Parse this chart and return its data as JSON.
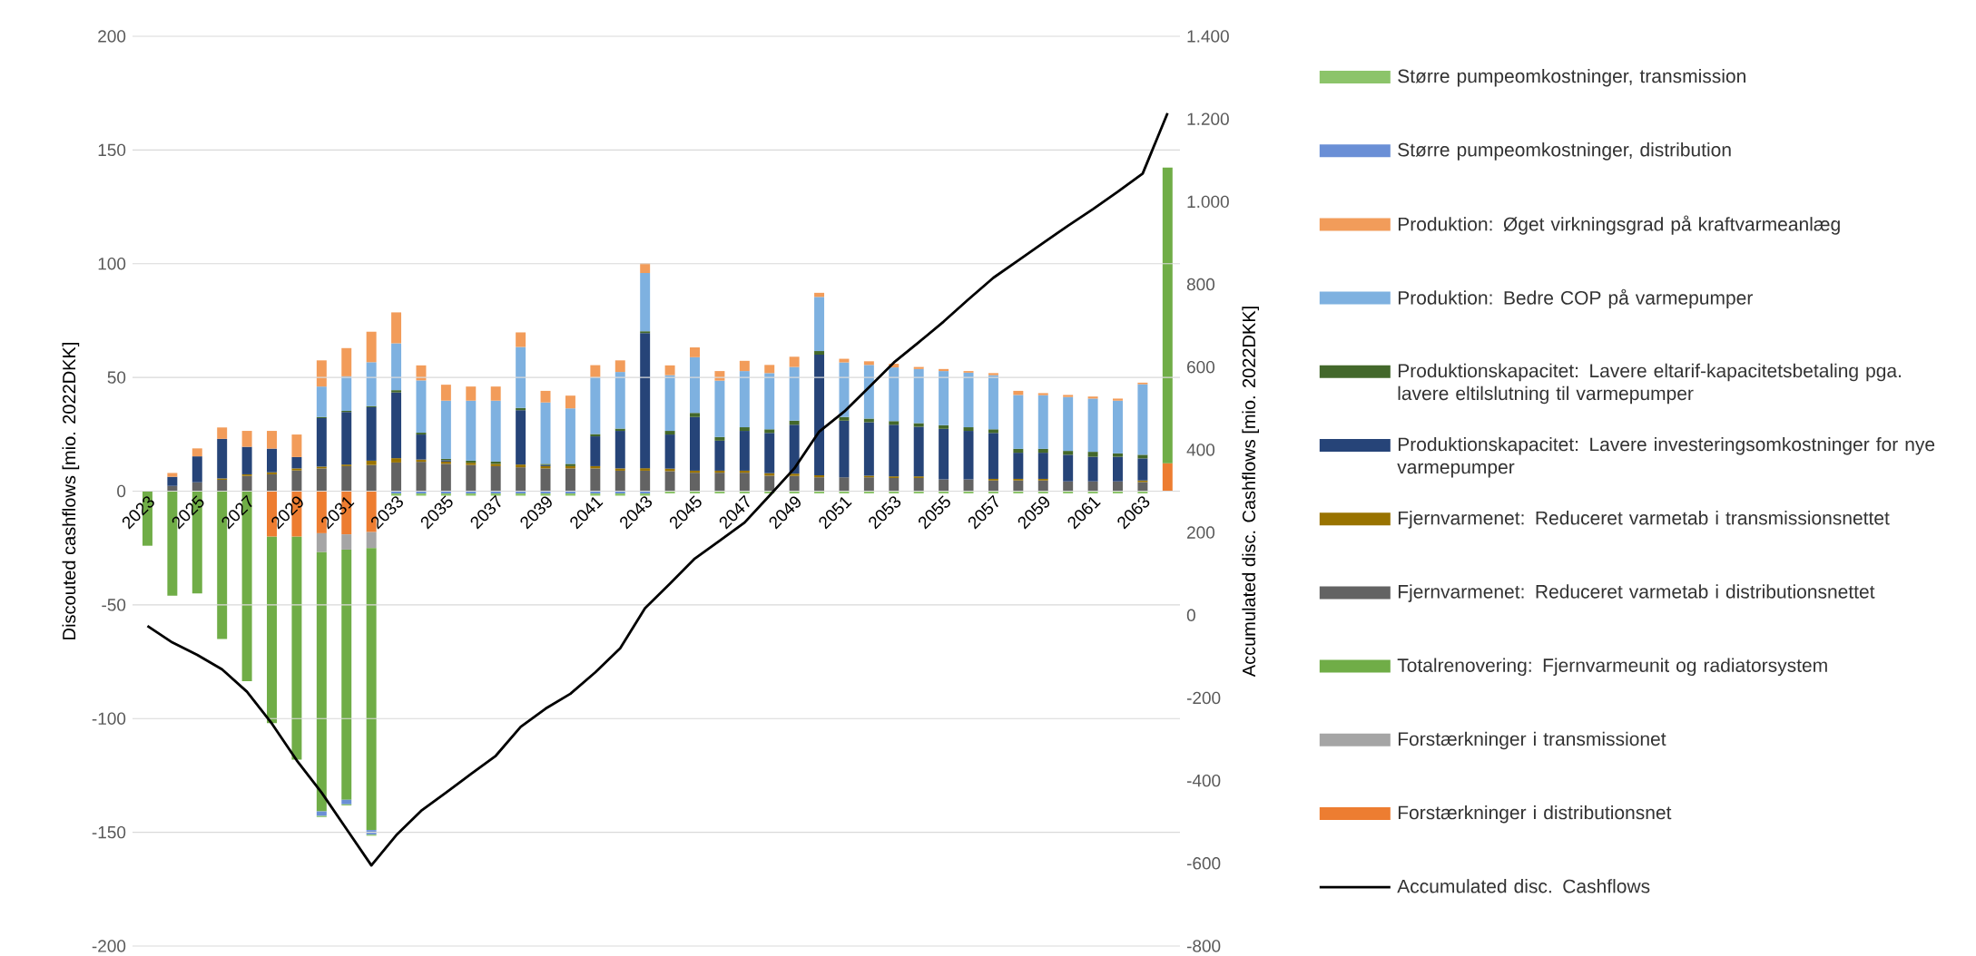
{
  "chart_data": {
    "type": "bar",
    "stacked": true,
    "ylabel": "Discouted cashflows [mio. 2022DKK]",
    "y2label": "Accumulated disc. Cashflows [mio. 2022DKK]",
    "categories": [
      "2023",
      null,
      "2025",
      null,
      "2027",
      null,
      "2029",
      null,
      "2031",
      null,
      "2033",
      null,
      "2035",
      null,
      "2037",
      null,
      "2039",
      null,
      "2041",
      null,
      "2043",
      null,
      "2045",
      null,
      "2047",
      null,
      "2049",
      null,
      "2051",
      null,
      "2053",
      null,
      "2055",
      null,
      "2057",
      null,
      "2059",
      null,
      "2061",
      null,
      "2063",
      null
    ],
    "ylim": [
      -200,
      200
    ],
    "yticks": [
      -200,
      -150,
      -100,
      -50,
      0,
      50,
      100,
      150,
      200
    ],
    "y2lim": [
      -800,
      1400
    ],
    "y2ticks": [
      -800,
      -600,
      -400,
      -200,
      0,
      200,
      400,
      600,
      800,
      {
        "value": 1000,
        "label": "1.000"
      },
      {
        "value": 1200,
        "label": "1.200"
      },
      {
        "value": 1400,
        "label": "1.400"
      }
    ],
    "grid": "y",
    "legend": "right",
    "series": [
      {
        "name": "Forstærkninger i distributionsnet",
        "color": "#ed7d31",
        "values": [
          null,
          null,
          null,
          null,
          null,
          -20,
          -20,
          -18.5,
          -19,
          -18,
          null,
          null,
          null,
          null,
          null,
          null,
          null,
          null,
          null,
          null,
          null,
          null,
          null,
          null,
          null,
          null,
          null,
          null,
          null,
          null,
          null,
          null,
          null,
          null,
          null,
          null,
          null,
          null,
          null,
          null,
          null,
          12.3
        ]
      },
      {
        "name": "Forstærkninger i transmissionet",
        "color": "#a5a5a5",
        "values": [
          null,
          null,
          null,
          null,
          null,
          null,
          null,
          -8.3,
          -6.7,
          -7,
          null,
          null,
          null,
          null,
          null,
          null,
          null,
          null,
          null,
          null,
          null,
          null,
          null,
          null,
          null,
          null,
          null,
          null,
          null,
          null,
          null,
          null,
          null,
          null,
          null,
          null,
          null,
          null,
          null,
          null,
          null,
          null
        ]
      },
      {
        "name": "Totalrenovering: Fjernvarmeunit og radiatorsystem",
        "color": "#70ad47",
        "values": [
          -24,
          -46,
          -45,
          -65,
          -83.5,
          -82,
          -98,
          -114,
          -110,
          -124,
          null,
          null,
          null,
          null,
          null,
          null,
          null,
          null,
          null,
          null,
          null,
          null,
          null,
          null,
          null,
          null,
          null,
          null,
          null,
          null,
          null,
          null,
          null,
          null,
          null,
          null,
          null,
          null,
          null,
          null,
          null,
          130
        ]
      },
      {
        "name": "Fjernvarmenet: Reduceret varmetab i distributionsnettet",
        "color": "#636363",
        "values": [
          null,
          2.3,
          3.9,
          5,
          6.7,
          7.4,
          9.1,
          10,
          11,
          11.5,
          12.6,
          12.9,
          12,
          11.5,
          11,
          10.5,
          10,
          10,
          10,
          9,
          9,
          8.8,
          8.1,
          8.1,
          8.1,
          6.8,
          6.7,
          6.1,
          6.1,
          6.1,
          5.8,
          5.8,
          5.2,
          5.2,
          4.7,
          4.7,
          4.7,
          4.3,
          4.3,
          4.3,
          4,
          null
        ]
      },
      {
        "name": "Fjernvarmenet: Reduceret varmetab i transmissionsnettet",
        "color": "#997300",
        "values": [
          null,
          null,
          null,
          0.6,
          0.7,
          0.9,
          0.9,
          0.8,
          0.7,
          1.9,
          1.9,
          1,
          1,
          1,
          1,
          1.2,
          1,
          1,
          1,
          1,
          1.1,
          1.1,
          0.9,
          0.9,
          0.9,
          1.1,
          1,
          0.9,
          null,
          0.7,
          0.7,
          0.7,
          null,
          null,
          0.7,
          0.7,
          0.7,
          null,
          null,
          null,
          0.7,
          null
        ]
      },
      {
        "name": "Produktionskapacitet: Lavere investeringsomkostninger for nye varmepumper",
        "color": "#264478",
        "values": [
          null,
          4,
          11.4,
          17.4,
          12.1,
          10.4,
          5,
          21.3,
          23.1,
          23.5,
          28.9,
          11,
          0.6,
          null,
          null,
          23.9,
          0.5,
          null,
          13.1,
          16.5,
          59.4,
          15,
          23.6,
          13.2,
          17.5,
          17.7,
          21.5,
          53,
          24.9,
          23.5,
          22.7,
          21.8,
          22.2,
          21.3,
          20.2,
          11.5,
          11.5,
          11.7,
          10.8,
          10.8,
          9.7,
          null
        ]
      },
      {
        "name": "Produktionskapacitet: Lavere eltarif-kapacitetsbetaling pga. lavere eltilslutning til varmepumper",
        "color": "#43682b",
        "values": [
          null,
          null,
          null,
          null,
          null,
          null,
          null,
          0.5,
          0.5,
          0.5,
          1,
          0.8,
          0.6,
          0.9,
          1,
          1,
          0.5,
          1,
          1,
          1,
          0.8,
          1.6,
          1.8,
          1.6,
          1.6,
          1.6,
          1.8,
          1.6,
          1.6,
          1.6,
          1.6,
          1.6,
          1.6,
          1.6,
          1.6,
          1.7,
          1.7,
          1.7,
          2.2,
          1.5,
          1.6,
          null
        ]
      },
      {
        "name": "Produktion: Bedre COP på varmepumper",
        "color": "#7eb1e0",
        "values": [
          null,
          null,
          null,
          null,
          null,
          null,
          null,
          13.4,
          15.2,
          19.3,
          20.6,
          23,
          25.6,
          26.4,
          26.8,
          26.8,
          27,
          24.4,
          25,
          24.9,
          25.6,
          24.5,
          24.5,
          24.8,
          24.7,
          24.7,
          23.6,
          23.8,
          24,
          23.6,
          23.6,
          23.8,
          23.8,
          24,
          23.8,
          23.7,
          23.6,
          23.7,
          23.4,
          23.2,
          31,
          null
        ]
      },
      {
        "name": "Produktion: Øget virkningsgrad på kraftvarmeanlæg",
        "color": "#f29c5a",
        "values": [
          null,
          1.7,
          3.5,
          5,
          7,
          7.8,
          9.9,
          11.5,
          12.4,
          13.4,
          13.6,
          6.6,
          7,
          6.2,
          6.2,
          6.4,
          5.1,
          5.6,
          5.3,
          5.1,
          4.3,
          4.3,
          4.3,
          4.2,
          4.5,
          3.6,
          4.5,
          1.8,
          1.6,
          1.6,
          1.6,
          0.9,
          0.9,
          0.7,
          0.9,
          1.8,
          0.9,
          0.9,
          0.9,
          0.9,
          0.7,
          null
        ]
      },
      {
        "name": "Større pumpeomkostninger, distribution",
        "color": "#6a8fd6",
        "values": [
          null,
          null,
          null,
          null,
          null,
          null,
          null,
          -2,
          -2,
          -2,
          -1,
          -1,
          -1,
          -1,
          -1,
          -1,
          -1,
          -1,
          -1,
          -1,
          -1,
          null,
          null,
          null,
          null,
          null,
          null,
          null,
          null,
          null,
          null,
          null,
          null,
          null,
          null,
          null,
          null,
          null,
          null,
          null,
          null,
          null
        ]
      },
      {
        "name": "Større pumpeomkostninger, transmission",
        "color": "#8cc46a",
        "values": [
          null,
          null,
          null,
          null,
          null,
          null,
          null,
          -0.5,
          -0.5,
          -0.5,
          -1,
          -1,
          -1,
          -1,
          -1,
          -1,
          -1,
          -1,
          -1,
          -1,
          -1,
          -1,
          -1,
          -1,
          -1,
          -1,
          -1,
          -1,
          -1,
          -1,
          -1,
          -1,
          -1,
          -1,
          -1,
          -1,
          -1,
          -1,
          -1,
          -1,
          -1,
          null
        ]
      },
      {
        "name": "Accumulated disc. Cashflows",
        "type": "line",
        "axis": "y2",
        "color": "#000000",
        "values": [
          -26,
          -66,
          -96,
          -131,
          -185,
          -262,
          -351,
          -429,
          -517,
          -605,
          -532,
          -473,
          -429,
          -384,
          -340,
          -270,
          -226,
          -190,
          -138,
          -80,
          17,
          76,
          137,
          180,
          224,
          289,
          355,
          444,
          492,
          551,
          611,
          660,
          710,
          764,
          816,
          858,
          900,
          942,
          982,
          1024,
          1068,
          1214
        ]
      }
    ]
  }
}
